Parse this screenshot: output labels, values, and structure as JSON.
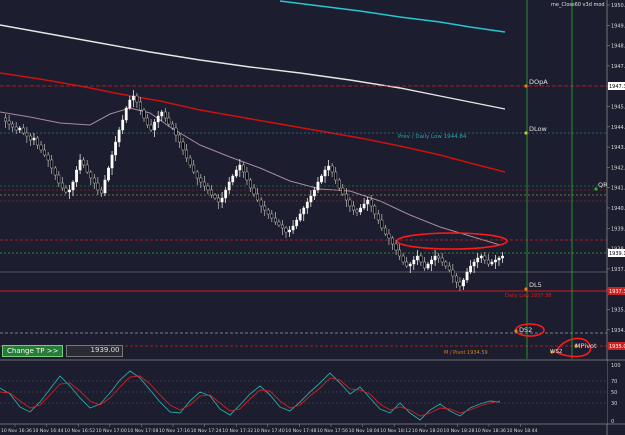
{
  "indicator_title": "me_Closs60 v3d mod",
  "trade_panel": {
    "button_label": "Change TP >>",
    "tp_value": "1939.00"
  },
  "price_axis": {
    "labels": [
      "1950.70",
      "1949.70",
      "1948.70",
      "1947.70",
      "1946.70",
      "1945.70",
      "1944.70",
      "1943.70",
      "1942.70",
      "1941.70",
      "1940.70",
      "1939.70",
      "1938.70",
      "1937.70",
      "1936.70",
      "1935.70",
      "1934.70"
    ],
    "highlights": [
      {
        "label": "1947.31",
        "color": "#ffffff"
      },
      {
        "label": "1939.12",
        "color": "#ffffff"
      },
      {
        "label": "1937.38",
        "color": "#cc2222"
      },
      {
        "label": "1935.06",
        "color": "#cc2222"
      }
    ]
  },
  "osc_axis": {
    "labels": [
      "100",
      "70",
      "50",
      "30",
      "0"
    ]
  },
  "time_axis": {
    "labels": [
      "10 Nov 16:36",
      "10 Nov 16:44",
      "10 Nov 16:52",
      "10 Nov 17:00",
      "10 Nov 17:08",
      "10 Nov 17:16",
      "10 Nov 17:24",
      "10 Nov 17:32",
      "10 Nov 17:40",
      "10 Nov 17:48",
      "10 Nov 17:56",
      "10 Nov 18:04",
      "10 Nov 18:12",
      "10 Nov 18:20",
      "10 Nov 18:28",
      "10 Nov 18:36",
      "10 Nov 18:44"
    ]
  },
  "level_labels": {
    "dopen": "DOpA",
    "dlow": "DLow",
    "prev_daily_low": "Prev / Daily Low 1944.84",
    "qr": "QR",
    "dl5": "DL5",
    "daily_low": "Daily Low 1937.38",
    "ds2": "DS2",
    "pivot": "M / Pivot 1934.59",
    "mpivot": "MPivot",
    "ws": "WS2"
  },
  "colors": {
    "background": "#1c1d2e",
    "bull": "#ffffff",
    "bear": "#000000",
    "ma_red": "#cc1111",
    "ma_white": "#e6e6e6",
    "ma_cyan": "#23c8d0",
    "ma_mauve": "#a88aa0",
    "level_red": "#d02020",
    "level_green": "#2fae2f",
    "osc_red": "#d02020",
    "osc_teal": "#2aa8a8"
  }
}
